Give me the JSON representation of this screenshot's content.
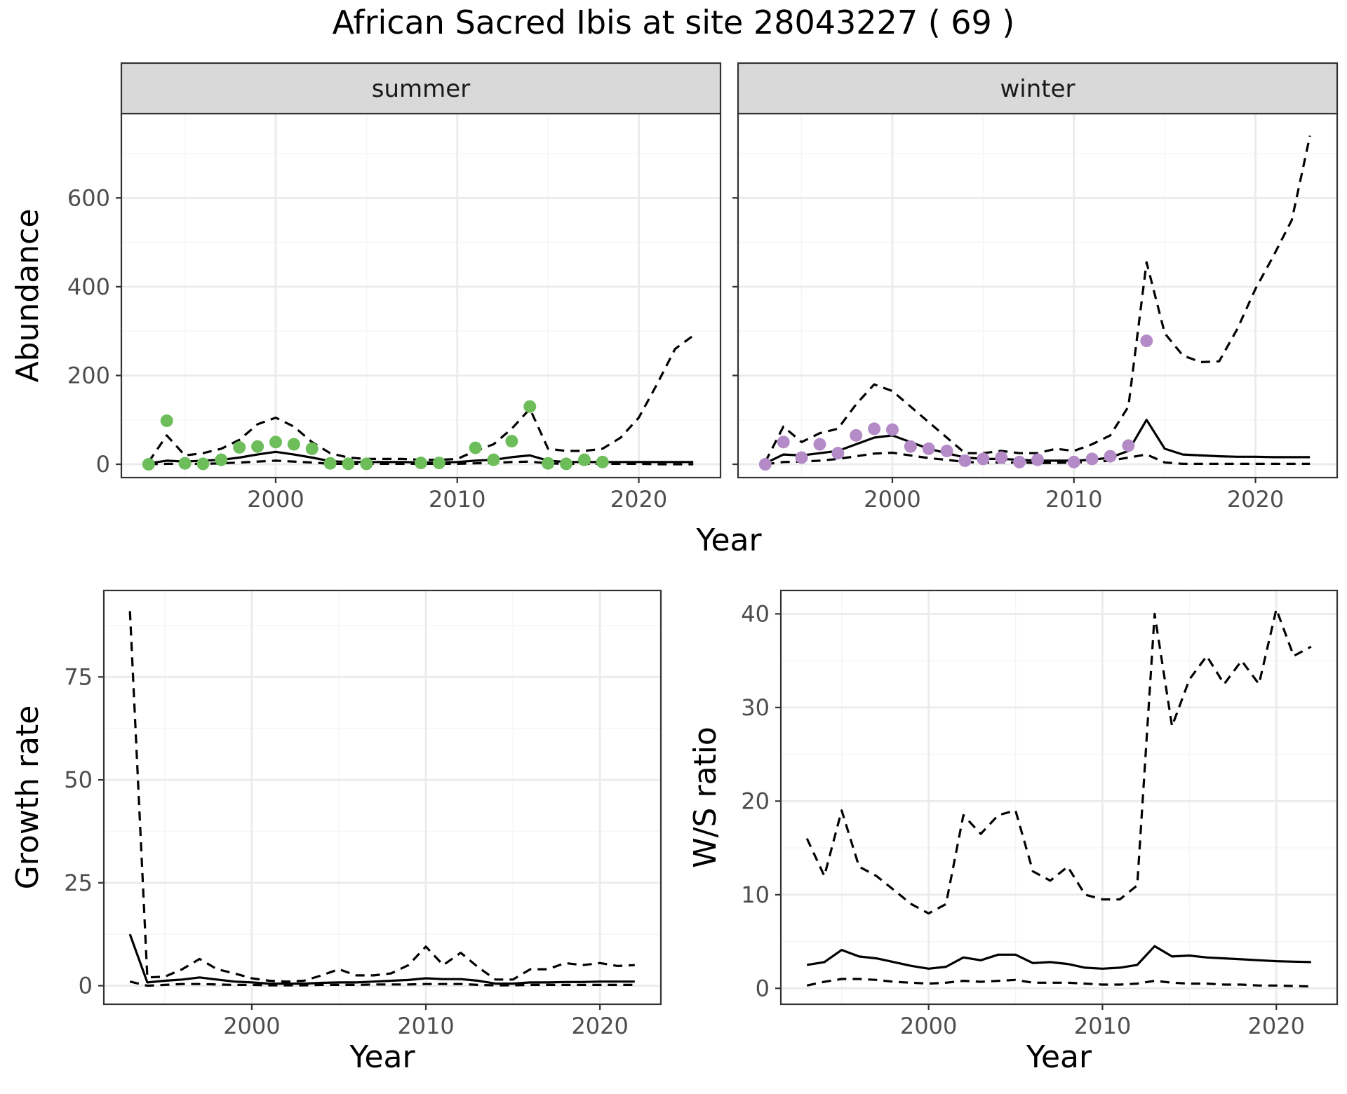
{
  "title": "African Sacred Ibis at site 28043227 ( 69 )",
  "colors": {
    "summer_points": "#6dbd5b",
    "winter_points": "#b48bc7",
    "strip_bg": "#d9d9d9",
    "grid_major": "#ebebeb",
    "grid_minor": "#f5f5f5",
    "axis_text": "#4d4d4d",
    "line": "#000000"
  },
  "chart_data": [
    {
      "type": "line",
      "panel": "summer",
      "strip_label": "summer",
      "xlabel": "",
      "ylabel": "Abundance",
      "xlim": [
        1991.5,
        2024.5
      ],
      "ylim": [
        -30,
        790
      ],
      "xticks": [
        2000,
        2010,
        2020
      ],
      "yticks": [
        0,
        200,
        400,
        600
      ],
      "points": {
        "x": [
          1993,
          1994,
          1995,
          1996,
          1997,
          1998,
          1999,
          2000,
          2001,
          2002,
          2003,
          2004,
          2005,
          2008,
          2009,
          2011,
          2012,
          2013,
          2014,
          2015,
          2016,
          2017,
          2018
        ],
        "y": [
          0,
          98,
          2,
          1,
          10,
          38,
          40,
          50,
          45,
          35,
          2,
          1,
          1,
          3,
          3,
          37,
          10,
          52,
          130,
          2,
          1,
          10,
          5
        ]
      },
      "series": [
        {
          "style": "solid",
          "x": [
            1993,
            1994,
            1995,
            1996,
            1997,
            1998,
            1999,
            2000,
            2001,
            2002,
            2003,
            2004,
            2005,
            2006,
            2007,
            2008,
            2009,
            2010,
            2011,
            2012,
            2013,
            2014,
            2015,
            2016,
            2017,
            2018,
            2019,
            2020,
            2021,
            2022,
            2023
          ],
          "y": [
            2,
            8,
            6,
            8,
            10,
            15,
            22,
            28,
            22,
            15,
            7,
            5,
            5,
            5,
            5,
            4,
            4,
            5,
            8,
            10,
            16,
            20,
            8,
            5,
            5,
            5,
            5,
            5,
            5,
            5,
            5
          ]
        },
        {
          "style": "dashed",
          "x": [
            1993,
            1994,
            1995,
            1996,
            1997,
            1998,
            1999,
            2000,
            2001,
            2002,
            2003,
            2004,
            2005,
            2006,
            2007,
            2008,
            2009,
            2010,
            2011,
            2012,
            2013,
            2014,
            2015,
            2016,
            2017,
            2018,
            2019,
            2020,
            2021,
            2022,
            2023
          ],
          "y": [
            5,
            65,
            20,
            25,
            35,
            55,
            90,
            105,
            85,
            50,
            25,
            15,
            12,
            12,
            12,
            10,
            10,
            12,
            30,
            45,
            80,
            125,
            35,
            30,
            30,
            35,
            60,
            105,
            180,
            260,
            290
          ]
        },
        {
          "style": "dashed",
          "x": [
            1993,
            1994,
            1995,
            1996,
            1997,
            1998,
            1999,
            2000,
            2001,
            2002,
            2003,
            2004,
            2005,
            2006,
            2007,
            2008,
            2009,
            2010,
            2011,
            2012,
            2013,
            2014,
            2015,
            2016,
            2017,
            2018,
            2019,
            2020,
            2021,
            2022,
            2023
          ],
          "y": [
            0,
            1,
            1,
            1,
            2,
            4,
            6,
            8,
            6,
            4,
            1,
            1,
            1,
            1,
            1,
            1,
            1,
            1,
            2,
            3,
            5,
            6,
            2,
            1,
            1,
            1,
            1,
            1,
            0,
            0,
            0
          ]
        }
      ]
    },
    {
      "type": "line",
      "panel": "winter",
      "strip_label": "winter",
      "xlabel": "",
      "ylabel": "",
      "xlim": [
        1991.5,
        2024.5
      ],
      "ylim": [
        -30,
        790
      ],
      "xticks": [
        2000,
        2010,
        2020
      ],
      "yticks": [
        0,
        200,
        400,
        600
      ],
      "points": {
        "x": [
          1993,
          1994,
          1995,
          1996,
          1997,
          1998,
          1999,
          2000,
          2001,
          2002,
          2003,
          2004,
          2005,
          2006,
          2007,
          2008,
          2010,
          2011,
          2012,
          2013,
          2014
        ],
        "y": [
          0,
          50,
          15,
          45,
          25,
          65,
          80,
          78,
          40,
          35,
          30,
          8,
          12,
          15,
          5,
          10,
          5,
          12,
          18,
          42,
          278
        ]
      },
      "series": [
        {
          "style": "solid",
          "x": [
            1993,
            1994,
            1995,
            1996,
            1997,
            1998,
            1999,
            2000,
            2001,
            2002,
            2003,
            2004,
            2005,
            2006,
            2007,
            2008,
            2009,
            2010,
            2011,
            2012,
            2013,
            2014,
            2015,
            2016,
            2017,
            2018,
            2019,
            2020,
            2021,
            2022,
            2023
          ],
          "y": [
            2,
            22,
            20,
            25,
            30,
            45,
            60,
            65,
            50,
            35,
            25,
            15,
            12,
            12,
            10,
            8,
            8,
            8,
            10,
            15,
            30,
            100,
            35,
            22,
            20,
            18,
            17,
            17,
            16,
            16,
            16
          ]
        },
        {
          "style": "dashed",
          "x": [
            1993,
            1994,
            1995,
            1996,
            1997,
            1998,
            1999,
            2000,
            2001,
            2002,
            2003,
            2004,
            2005,
            2006,
            2007,
            2008,
            2009,
            2010,
            2011,
            2012,
            2013,
            2014,
            2015,
            2016,
            2017,
            2018,
            2019,
            2020,
            2021,
            2022,
            2023
          ],
          "y": [
            5,
            85,
            50,
            70,
            80,
            135,
            180,
            165,
            130,
            95,
            60,
            25,
            25,
            30,
            25,
            25,
            35,
            30,
            45,
            65,
            130,
            455,
            295,
            245,
            230,
            232,
            305,
            395,
            470,
            550,
            740
          ]
        },
        {
          "style": "dashed",
          "x": [
            1993,
            1994,
            1995,
            1996,
            1997,
            1998,
            1999,
            2000,
            2001,
            2002,
            2003,
            2004,
            2005,
            2006,
            2007,
            2008,
            2009,
            2010,
            2011,
            2012,
            2013,
            2014,
            2015,
            2016,
            2017,
            2018,
            2019,
            2020,
            2021,
            2022,
            2023
          ],
          "y": [
            0,
            5,
            6,
            8,
            12,
            18,
            24,
            26,
            20,
            14,
            10,
            5,
            4,
            4,
            4,
            3,
            3,
            4,
            5,
            8,
            15,
            22,
            4,
            1,
            1,
            1,
            1,
            1,
            1,
            1,
            1
          ]
        }
      ]
    },
    {
      "type": "line",
      "panel": "growth",
      "xlabel": "Year",
      "ylabel": "Growth rate",
      "xlim": [
        1991.5,
        2023.5
      ],
      "ylim": [
        -4.5,
        96
      ],
      "xticks": [
        2000,
        2010,
        2020
      ],
      "yticks": [
        0,
        25,
        50,
        75
      ],
      "series": [
        {
          "style": "solid",
          "x": [
            1993,
            1994,
            1995,
            1996,
            1997,
            1998,
            1999,
            2000,
            2001,
            2002,
            2003,
            2004,
            2005,
            2006,
            2007,
            2008,
            2009,
            2010,
            2011,
            2012,
            2013,
            2014,
            2015,
            2016,
            2017,
            2018,
            2019,
            2020,
            2021,
            2022
          ],
          "y": [
            12.5,
            0.8,
            1.2,
            1.5,
            2,
            1.5,
            1,
            0.8,
            0.5,
            0.5,
            0.5,
            0.7,
            0.8,
            0.8,
            1,
            1.2,
            1.4,
            1.8,
            1.6,
            1.6,
            1.2,
            0.5,
            0.5,
            0.8,
            0.8,
            0.9,
            0.9,
            1,
            1,
            1
          ]
        },
        {
          "style": "dashed",
          "x": [
            1993,
            1994,
            1995,
            1996,
            1997,
            1998,
            1999,
            2000,
            2001,
            2002,
            2003,
            2004,
            2005,
            2006,
            2007,
            2008,
            2009,
            2010,
            2011,
            2012,
            2013,
            2014,
            2015,
            2016,
            2017,
            2018,
            2019,
            2020,
            2021,
            2022
          ],
          "y": [
            91,
            2,
            2.2,
            4,
            6.5,
            4,
            3,
            1.8,
            1.2,
            1,
            1.2,
            2.5,
            4,
            2.5,
            2.5,
            3,
            5,
            9.5,
            5,
            8,
            4.5,
            1.5,
            1.5,
            4,
            4,
            5.5,
            5,
            5.5,
            4.8,
            5
          ]
        },
        {
          "style": "dashed",
          "x": [
            1993,
            1994,
            1995,
            1996,
            1997,
            1998,
            1999,
            2000,
            2001,
            2002,
            2003,
            2004,
            2005,
            2006,
            2007,
            2008,
            2009,
            2010,
            2011,
            2012,
            2013,
            2014,
            2015,
            2016,
            2017,
            2018,
            2019,
            2020,
            2021,
            2022
          ],
          "y": [
            1,
            0,
            0.2,
            0.4,
            0.4,
            0.3,
            0.2,
            0.2,
            0.1,
            0.1,
            0.1,
            0.2,
            0.2,
            0.2,
            0.3,
            0.3,
            0.3,
            0.4,
            0.4,
            0.4,
            0.2,
            0.1,
            0.1,
            0.2,
            0.2,
            0.2,
            0.2,
            0.2,
            0.2,
            0.2
          ]
        }
      ]
    },
    {
      "type": "line",
      "panel": "ws_ratio",
      "xlabel": "Year",
      "ylabel": "W/S ratio",
      "xlim": [
        1991.5,
        2023.5
      ],
      "ylim": [
        -1.7,
        42.5
      ],
      "xticks": [
        2000,
        2010,
        2020
      ],
      "yticks": [
        0,
        10,
        20,
        30,
        40
      ],
      "series": [
        {
          "style": "solid",
          "x": [
            1993,
            1994,
            1995,
            1996,
            1997,
            1998,
            1999,
            2000,
            2001,
            2002,
            2003,
            2004,
            2005,
            2006,
            2007,
            2008,
            2009,
            2010,
            2011,
            2012,
            2013,
            2014,
            2015,
            2016,
            2017,
            2018,
            2019,
            2020,
            2021,
            2022
          ],
          "y": [
            2.5,
            2.8,
            4.1,
            3.4,
            3.2,
            2.8,
            2.4,
            2.1,
            2.3,
            3.3,
            3,
            3.6,
            3.6,
            2.7,
            2.8,
            2.6,
            2.2,
            2.1,
            2.2,
            2.5,
            4.5,
            3.4,
            3.5,
            3.3,
            3.2,
            3.1,
            3,
            2.9,
            2.85,
            2.8
          ]
        },
        {
          "style": "dashed",
          "x": [
            1993,
            1994,
            1995,
            1996,
            1997,
            1998,
            1999,
            2000,
            2001,
            2002,
            2003,
            2004,
            2005,
            2006,
            2007,
            2008,
            2009,
            2010,
            2011,
            2012,
            2013,
            2014,
            2015,
            2016,
            2017,
            2018,
            2019,
            2020,
            2021,
            2022
          ],
          "y": [
            16,
            12,
            19,
            13,
            12,
            10.5,
            9,
            8,
            9,
            18.5,
            16.5,
            18.5,
            19,
            12.5,
            11.5,
            13,
            10,
            9.5,
            9.5,
            11,
            40,
            28,
            33,
            35.5,
            32.5,
            35,
            32.5,
            40.5,
            35.5,
            36.5
          ]
        },
        {
          "style": "dashed",
          "x": [
            1993,
            1994,
            1995,
            1996,
            1997,
            1998,
            1999,
            2000,
            2001,
            2002,
            2003,
            2004,
            2005,
            2006,
            2007,
            2008,
            2009,
            2010,
            2011,
            2012,
            2013,
            2014,
            2015,
            2016,
            2017,
            2018,
            2019,
            2020,
            2021,
            2022
          ],
          "y": [
            0.3,
            0.7,
            1,
            1,
            0.9,
            0.7,
            0.6,
            0.5,
            0.6,
            0.8,
            0.7,
            0.8,
            0.9,
            0.6,
            0.6,
            0.6,
            0.5,
            0.4,
            0.4,
            0.5,
            0.8,
            0.6,
            0.5,
            0.5,
            0.4,
            0.4,
            0.3,
            0.3,
            0.25,
            0.2
          ]
        }
      ]
    }
  ],
  "shared_xlabel_top": "Year"
}
